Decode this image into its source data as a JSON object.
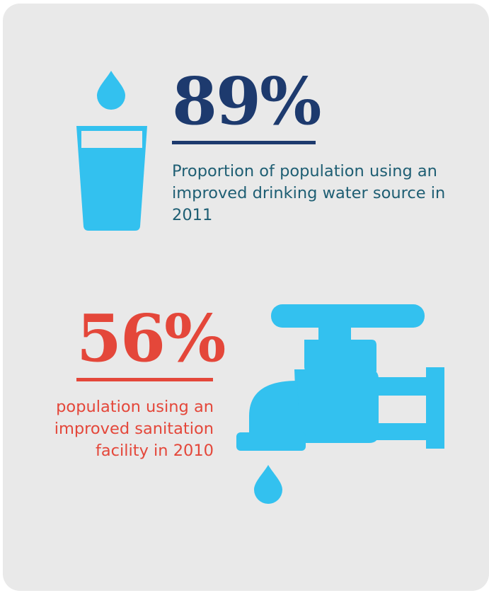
{
  "colors": {
    "background": "#e9e9e9",
    "navy": "#1d3a6e",
    "teal_text": "#1e5e73",
    "red": "#e4473a",
    "water_blue": "#33c1ef"
  },
  "stat_water": {
    "value": "89%",
    "description": "Proportion of population using an improved drinking water source in 2011",
    "icons": [
      "water-drop-icon",
      "water-glass-icon"
    ]
  },
  "stat_sanitation": {
    "value": "56%",
    "description": "population using an improved sanitation facility in 2010",
    "icons": [
      "water-tap-icon",
      "water-drop-icon"
    ]
  }
}
